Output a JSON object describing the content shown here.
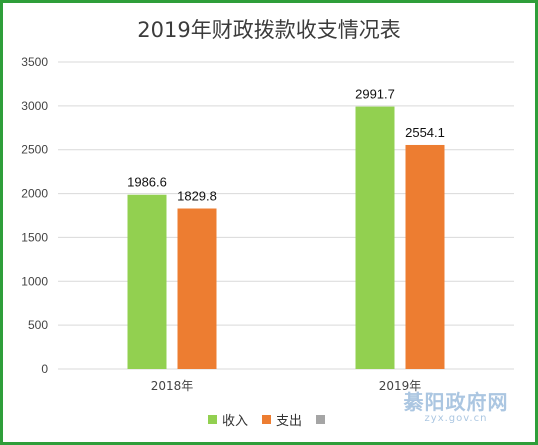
{
  "chart_data": {
    "type": "bar",
    "title": "2019年财政拨款收支情况表",
    "categories": [
      "2018年",
      "2019年"
    ],
    "series": [
      {
        "name": "收入",
        "values": [
          1986.6,
          2991.7
        ],
        "color": "#92d050",
        "labels": [
          "1986.6",
          "2991.7"
        ]
      },
      {
        "name": "支出",
        "values": [
          1829.8,
          2554.1
        ],
        "color": "#ed7d31",
        "labels": [
          "1829.8",
          "2554.1"
        ]
      }
    ],
    "extra_legend": {
      "name": "",
      "color": "#a5a5a5"
    },
    "ylim": [
      0,
      3500
    ],
    "yticks": [
      0,
      500,
      1000,
      1500,
      2000,
      2500,
      3000,
      3500
    ],
    "grid": true,
    "legend_position": "bottom"
  },
  "watermark": {
    "logo": "綦阳政府网",
    "url": "zyx.gov.cn"
  },
  "frame_color": "#2f9e3a"
}
